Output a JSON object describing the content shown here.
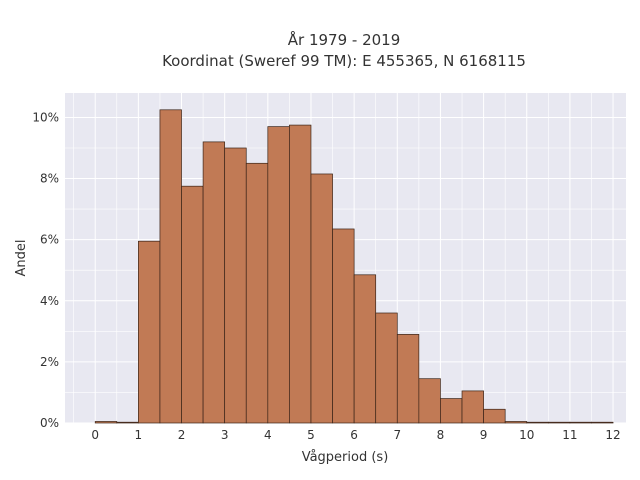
{
  "chart_data": {
    "type": "bar",
    "title_line1": "År 1979 - 2019",
    "title_line2": "Koordinat (Sweref 99 TM): E 455365, N 6168115",
    "xlabel": "Vågperiod (s)",
    "ylabel": "Andel",
    "x_ticks": [
      "0",
      "1",
      "2",
      "3",
      "4",
      "5",
      "6",
      "7",
      "8",
      "9",
      "10",
      "11",
      "12"
    ],
    "y_ticks": [
      "0%",
      "2%",
      "4%",
      "6%",
      "8%",
      "10%"
    ],
    "xlim": [
      -0.7,
      12.3
    ],
    "ylim": [
      0,
      10.8
    ],
    "bin_width": 0.5,
    "bins": [
      {
        "x0": 0.0,
        "value": 0.05
      },
      {
        "x0": 0.5,
        "value": 0.0
      },
      {
        "x0": 1.0,
        "value": 5.95
      },
      {
        "x0": 1.5,
        "value": 10.25
      },
      {
        "x0": 2.0,
        "value": 7.75
      },
      {
        "x0": 2.5,
        "value": 9.2
      },
      {
        "x0": 3.0,
        "value": 9.0
      },
      {
        "x0": 3.5,
        "value": 8.5
      },
      {
        "x0": 4.0,
        "value": 9.7
      },
      {
        "x0": 4.5,
        "value": 9.75
      },
      {
        "x0": 5.0,
        "value": 8.15
      },
      {
        "x0": 5.5,
        "value": 6.35
      },
      {
        "x0": 6.0,
        "value": 4.85
      },
      {
        "x0": 6.5,
        "value": 3.6
      },
      {
        "x0": 7.0,
        "value": 2.9
      },
      {
        "x0": 7.5,
        "value": 1.45
      },
      {
        "x0": 8.0,
        "value": 0.8
      },
      {
        "x0": 8.5,
        "value": 1.05
      },
      {
        "x0": 9.0,
        "value": 0.45
      },
      {
        "x0": 9.5,
        "value": 0.05
      },
      {
        "x0": 10.0,
        "value": 0.02
      },
      {
        "x0": 10.5,
        "value": 0.02
      },
      {
        "x0": 11.0,
        "value": 0.02
      },
      {
        "x0": 11.5,
        "value": 0.02
      }
    ],
    "bar_color": "#c17a55",
    "bar_edge_color": "#3a2418",
    "plot_bg": "#e8e8f1",
    "grid": true,
    "grid_color": "#ffffff",
    "legend": "none"
  }
}
